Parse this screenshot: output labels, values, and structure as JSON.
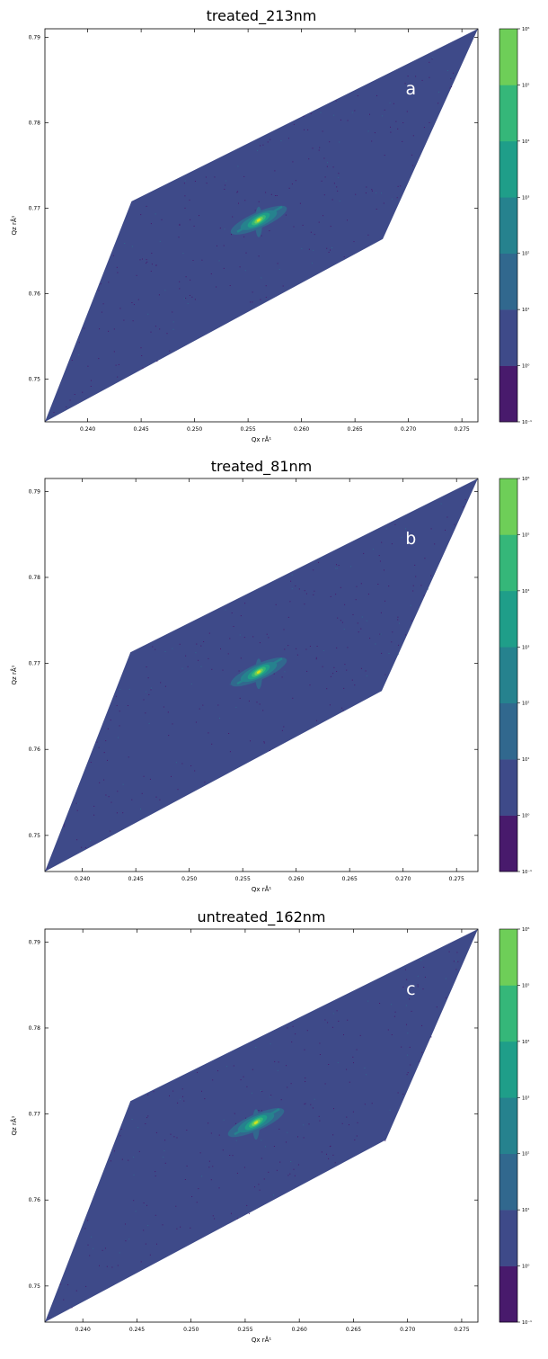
{
  "chart_data": [
    {
      "type": "heatmap",
      "title": "treated_213nm",
      "panel_label": "a",
      "xlabel": "Qx rÅ¹",
      "ylabel": "Qz rÅ¹",
      "xlim": [
        0.236,
        0.2765
      ],
      "ylim": [
        0.745,
        0.791
      ],
      "xticks": [
        0.24,
        0.245,
        0.25,
        0.255,
        0.26,
        0.265,
        0.27,
        0.275
      ],
      "xtick_labels": [
        "0.240",
        "0.245",
        "0.250",
        "0.255",
        "0.260",
        "0.265",
        "0.270",
        "0.275"
      ],
      "yticks": [
        0.75,
        0.76,
        0.77,
        0.78,
        0.79
      ],
      "ytick_labels": [
        "0.75",
        "0.76",
        "0.77",
        "0.78",
        "0.79"
      ],
      "region_corners": [
        [
          0.236,
          0.745
        ],
        [
          0.2441,
          0.7708
        ],
        [
          0.2765,
          0.791
        ],
        [
          0.2676,
          0.7664
        ]
      ],
      "peak": {
        "qx": 0.256,
        "qz": 0.7686
      },
      "colorbar": {
        "scale": "log",
        "levels_exp": [
          -1,
          0,
          1,
          2,
          3,
          4,
          5,
          6
        ],
        "tick_labels": [
          "10⁻¹",
          "10⁰",
          "10¹",
          "10²",
          "10³",
          "10⁴",
          "10⁵",
          "10⁶"
        ]
      }
    },
    {
      "type": "heatmap",
      "title": "treated_81nm",
      "panel_label": "b",
      "xlabel": "Qx rÅ¹",
      "ylabel": "Qz rÅ¹",
      "xlim": [
        0.2365,
        0.277
      ],
      "ylim": [
        0.7458,
        0.7915
      ],
      "xticks": [
        0.24,
        0.245,
        0.25,
        0.255,
        0.26,
        0.265,
        0.27,
        0.275
      ],
      "xtick_labels": [
        "0.240",
        "0.245",
        "0.250",
        "0.255",
        "0.260",
        "0.265",
        "0.270",
        "0.275"
      ],
      "yticks": [
        0.75,
        0.76,
        0.77,
        0.78,
        0.79
      ],
      "ytick_labels": [
        "0.75",
        "0.76",
        "0.77",
        "0.78",
        "0.79"
      ],
      "region_corners": [
        [
          0.2365,
          0.7458
        ],
        [
          0.2445,
          0.7713
        ],
        [
          0.277,
          0.7915
        ],
        [
          0.268,
          0.7668
        ]
      ],
      "peak": {
        "qx": 0.2565,
        "qz": 0.769
      },
      "colorbar": {
        "scale": "log",
        "levels_exp": [
          -1,
          0,
          1,
          2,
          3,
          4,
          5,
          6
        ],
        "tick_labels": [
          "10⁻¹",
          "10⁰",
          "10¹",
          "10²",
          "10³",
          "10⁴",
          "10⁵",
          "10⁶"
        ]
      }
    },
    {
      "type": "heatmap",
      "title": "untreated_162nm",
      "panel_label": "c",
      "xlabel": "Qx rÅ¹",
      "ylabel": "Qz rÅ¹",
      "xlim": [
        0.2365,
        0.2765
      ],
      "ylim": [
        0.7458,
        0.7915
      ],
      "xticks": [
        0.24,
        0.245,
        0.25,
        0.255,
        0.26,
        0.265,
        0.27,
        0.275
      ],
      "xtick_labels": [
        "0.240",
        "0.245",
        "0.250",
        "0.255",
        "0.260",
        "0.265",
        "0.270",
        "0.275"
      ],
      "yticks": [
        0.75,
        0.76,
        0.77,
        0.78,
        0.79
      ],
      "ytick_labels": [
        "0.75",
        "0.76",
        "0.77",
        "0.78",
        "0.79"
      ],
      "region_corners": [
        [
          0.2365,
          0.7458
        ],
        [
          0.2444,
          0.7715
        ],
        [
          0.2765,
          0.7915
        ],
        [
          0.268,
          0.767
        ]
      ],
      "peak": {
        "qx": 0.256,
        "qz": 0.769
      },
      "colorbar": {
        "scale": "log",
        "levels_exp": [
          -1,
          0,
          1,
          2,
          3,
          4,
          5,
          6
        ],
        "tick_labels": [
          "10⁻¹",
          "10⁰",
          "10¹",
          "10²",
          "10³",
          "10⁴",
          "10⁵",
          "10⁶"
        ]
      }
    }
  ],
  "colors": {
    "levels": [
      "#481a6c",
      "#3e4a89",
      "#31688e",
      "#26828e",
      "#1f9e89",
      "#35b779",
      "#6ece58",
      "#d2e21b"
    ]
  }
}
